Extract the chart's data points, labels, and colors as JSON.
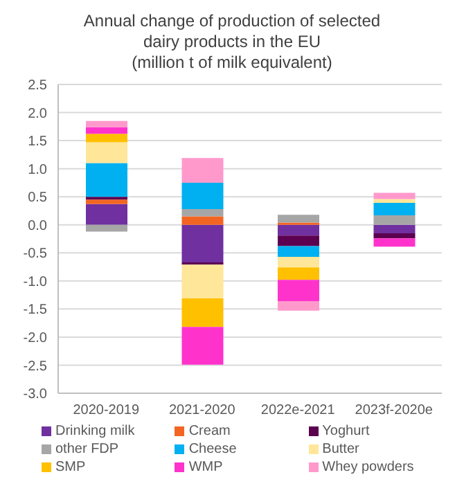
{
  "chart_data": {
    "type": "bar",
    "title": "Annual change of production of selected dairy products in the EU",
    "subtitle": "(million t of milk equivalent)",
    "categories": [
      "2020-2019",
      "2021-2020",
      "2022e-2021",
      "2023f-2020e"
    ],
    "stacked": true,
    "series": [
      {
        "name": "Drinking milk",
        "color": "#7030a0",
        "values": [
          0.37,
          -0.67,
          -0.19,
          -0.15
        ]
      },
      {
        "name": "Cream",
        "color": "#f26522",
        "values": [
          0.08,
          0.15,
          0.04,
          0
        ]
      },
      {
        "name": "Yoghurt",
        "color": "#5c0050",
        "values": [
          0.05,
          -0.04,
          -0.19,
          -0.09
        ]
      },
      {
        "name": "other FDP",
        "color": "#a6a6a6",
        "values": [
          -0.12,
          0.13,
          0.14,
          0.17
        ]
      },
      {
        "name": "Cheese",
        "color": "#00b0f0",
        "values": [
          0.6,
          0.47,
          -0.19,
          0.22
        ]
      },
      {
        "name": "Butter",
        "color": "#ffe699",
        "values": [
          0.37,
          -0.6,
          -0.19,
          0.07
        ]
      },
      {
        "name": "SMP",
        "color": "#ffc000",
        "values": [
          0.15,
          -0.51,
          -0.22,
          0
        ]
      },
      {
        "name": "WMP",
        "color": "#ff33cc",
        "values": [
          0.12,
          -0.67,
          -0.38,
          -0.15
        ]
      },
      {
        "name": "Whey powders",
        "color": "#ff99cc",
        "values": [
          0.11,
          0.44,
          -0.17,
          0.11
        ]
      }
    ],
    "ylim": [
      -3,
      2.5
    ],
    "yticks": [
      {
        "value": -3,
        "label": "-3.0"
      },
      -2.5,
      {
        "value": -2,
        "label": "-2.0"
      },
      -1.5,
      {
        "value": -1,
        "label": "-1.0"
      },
      -0.5,
      {
        "value": 0,
        "label": "0.0"
      },
      0.5,
      {
        "value": 1,
        "label": "1.0"
      },
      1.5,
      {
        "value": 2,
        "label": "2.0"
      },
      2.5
    ],
    "grid": "y",
    "legend": "bottom"
  }
}
